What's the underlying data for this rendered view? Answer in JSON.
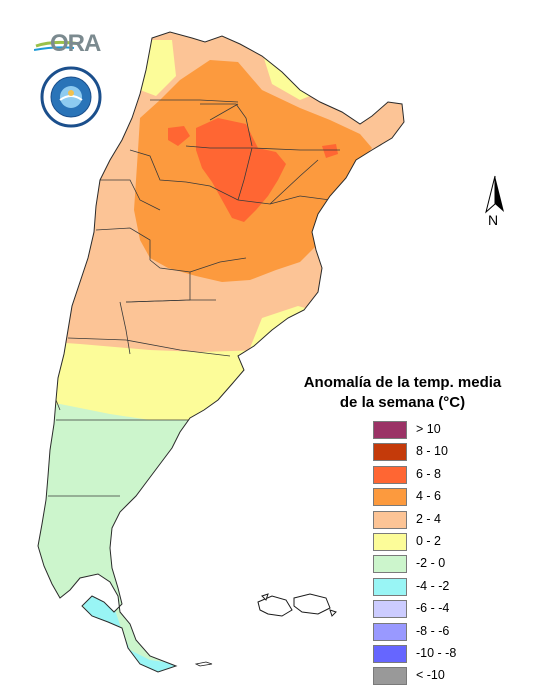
{
  "legend": {
    "title_line1": "Anomalía de la temp. media",
    "title_line2": "de la semana (°C)",
    "items": [
      {
        "label": "> 10",
        "color": "#9b3366"
      },
      {
        "label": "8 - 10",
        "color": "#c43a0a"
      },
      {
        "label": "6 - 8",
        "color": "#ff6633"
      },
      {
        "label": "4 - 6",
        "color": "#fc9a3e"
      },
      {
        "label": "2 - 4",
        "color": "#fcc496"
      },
      {
        "label": "0 - 2",
        "color": "#fcfc99"
      },
      {
        "label": "-2 - 0",
        "color": "#ccf5cc"
      },
      {
        "label": "-4 - -2",
        "color": "#99f5f5"
      },
      {
        "label": "-6 - -4",
        "color": "#ccccff"
      },
      {
        "label": "-8 - -6",
        "color": "#9999ff"
      },
      {
        "label": "-10 - -8",
        "color": "#6666ff"
      },
      {
        "label": "< -10",
        "color": "#999999"
      }
    ]
  },
  "north_arrow": {
    "label": "N",
    "icon": "north-arrow-icon"
  },
  "logos": {
    "ora_text": "ORA",
    "smn_seal": "smn-seal-icon"
  }
}
